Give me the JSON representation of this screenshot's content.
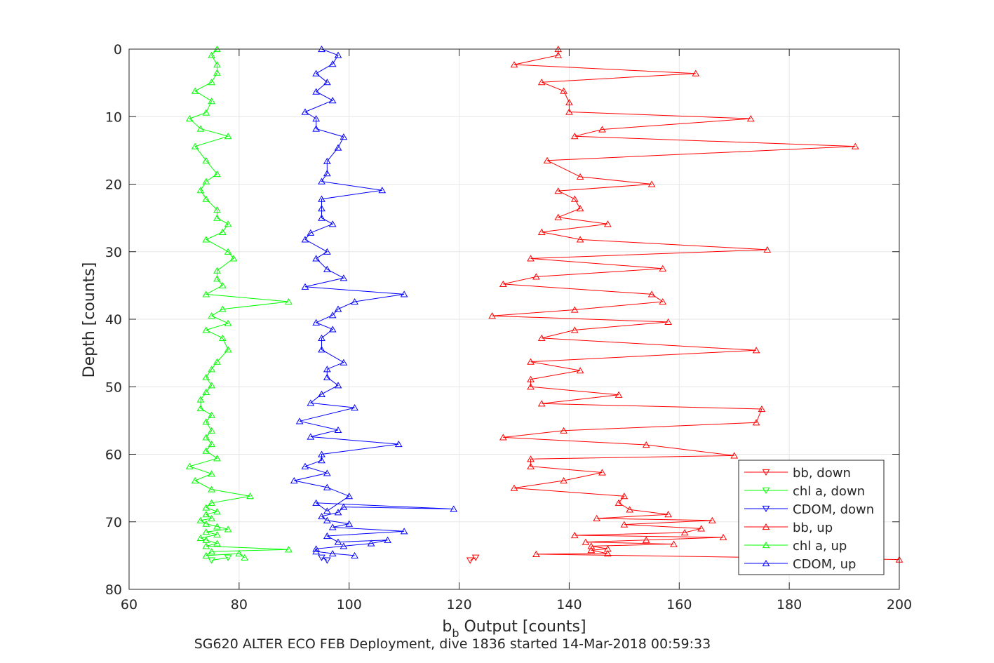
{
  "chart_data": {
    "type": "line",
    "title": "",
    "xlabel_main": "b",
    "xlabel_sub": "b",
    "xlabel_rest": " Output [counts]",
    "ylabel": "Depth [counts]",
    "caption": "SG620 ALTER ECO FEB Deployment, dive 1836 started 14-Mar-2018 00:59:33",
    "xlim": [
      60,
      200
    ],
    "ylim": [
      0,
      80
    ],
    "y_reversed": true,
    "grid": true,
    "legend_position": "bottom-right",
    "xticks": [
      60,
      80,
      100,
      120,
      140,
      160,
      180,
      200
    ],
    "yticks": [
      0,
      10,
      20,
      30,
      40,
      50,
      60,
      70,
      80
    ],
    "xtick_labels": [
      "60",
      "80",
      "100",
      "120",
      "140",
      "160",
      "180",
      "200"
    ],
    "ytick_labels": [
      "0",
      "10",
      "20",
      "30",
      "40",
      "50",
      "60",
      "70",
      "80"
    ],
    "series": [
      {
        "name": "bb, down",
        "color": "#ff0000",
        "marker": "triangle-down",
        "points": [
          [
            122,
            75.7
          ],
          [
            123,
            75.3
          ]
        ]
      },
      {
        "name": "chl a, down",
        "color": "#00ff00",
        "marker": "triangle-down",
        "points": [
          [
            78,
            75.3
          ],
          [
            75,
            75.7
          ]
        ]
      },
      {
        "name": "CDOM, down",
        "color": "#0000ff",
        "marker": "triangle-down",
        "points": [
          [
            95,
            75.3
          ],
          [
            96,
            75.7
          ]
        ]
      },
      {
        "name": "bb, up",
        "color": "#ff0000",
        "marker": "triangle-up",
        "points": [
          [
            200,
            75.6
          ],
          [
            134,
            74.8
          ],
          [
            147,
            74.7
          ],
          [
            144,
            74.2
          ],
          [
            147,
            74.0
          ],
          [
            144,
            73.6
          ],
          [
            159,
            73.3
          ],
          [
            143,
            73.0
          ],
          [
            154,
            72.7
          ],
          [
            168,
            72.3
          ],
          [
            141,
            72.0
          ],
          [
            161,
            71.6
          ],
          [
            164,
            71.0
          ],
          [
            150,
            70.4
          ],
          [
            166,
            69.8
          ],
          [
            145,
            69.5
          ],
          [
            158,
            68.9
          ],
          [
            151,
            68.2
          ],
          [
            149,
            67.2
          ],
          [
            150,
            66.2
          ],
          [
            130,
            65.0
          ],
          [
            139,
            63.9
          ],
          [
            146,
            62.7
          ],
          [
            133,
            61.8
          ],
          [
            133,
            60.7
          ],
          [
            170,
            60.2
          ],
          [
            154,
            58.6
          ],
          [
            128,
            57.5
          ],
          [
            139,
            56.5
          ],
          [
            174,
            55.3
          ],
          [
            175,
            53.3
          ],
          [
            135,
            52.5
          ],
          [
            149,
            51.2
          ],
          [
            133,
            50.0
          ],
          [
            133,
            48.9
          ],
          [
            142,
            47.6
          ],
          [
            133,
            46.3
          ],
          [
            174,
            44.6
          ],
          [
            135,
            42.8
          ],
          [
            141,
            41.6
          ],
          [
            158,
            40.4
          ],
          [
            126,
            39.5
          ],
          [
            141,
            38.6
          ],
          [
            157,
            37.4
          ],
          [
            155,
            36.3
          ],
          [
            128,
            34.8
          ],
          [
            134,
            33.7
          ],
          [
            157,
            32.5
          ],
          [
            133,
            31.0
          ],
          [
            176,
            29.7
          ],
          [
            142,
            28.2
          ],
          [
            135,
            27.1
          ],
          [
            147,
            25.9
          ],
          [
            138,
            24.9
          ],
          [
            142,
            23.6
          ],
          [
            141,
            22.2
          ],
          [
            138,
            21.0
          ],
          [
            155,
            20.0
          ],
          [
            142,
            18.9
          ],
          [
            136,
            16.5
          ],
          [
            192,
            14.4
          ],
          [
            141,
            12.9
          ],
          [
            146,
            11.9
          ],
          [
            173,
            10.3
          ],
          [
            140,
            9.3
          ],
          [
            140,
            7.9
          ],
          [
            139,
            6.2
          ],
          [
            135,
            4.9
          ],
          [
            163,
            3.6
          ],
          [
            130,
            2.3
          ],
          [
            138,
            0.9
          ],
          [
            138,
            0.0
          ]
        ]
      },
      {
        "name": "chl a, up",
        "color": "#00ff00",
        "marker": "triangle-up",
        "points": [
          [
            81,
            75.3
          ],
          [
            80,
            74.7
          ],
          [
            74,
            75.0
          ],
          [
            75,
            74.4
          ],
          [
            89,
            74.1
          ],
          [
            74,
            73.6
          ],
          [
            76,
            73.2
          ],
          [
            74,
            72.7
          ],
          [
            73,
            72.4
          ],
          [
            76,
            71.9
          ],
          [
            74,
            71.5
          ],
          [
            78,
            71.1
          ],
          [
            76,
            70.7
          ],
          [
            74,
            70.3
          ],
          [
            73,
            69.8
          ],
          [
            75,
            69.5
          ],
          [
            74,
            68.9
          ],
          [
            76,
            68.5
          ],
          [
            74,
            67.9
          ],
          [
            75,
            67.2
          ],
          [
            82,
            66.2
          ],
          [
            75,
            65.2
          ],
          [
            72,
            63.9
          ],
          [
            75,
            62.9
          ],
          [
            71,
            61.8
          ],
          [
            76,
            60.6
          ],
          [
            74,
            59.5
          ],
          [
            75,
            58.5
          ],
          [
            74,
            57.5
          ],
          [
            75,
            56.5
          ],
          [
            74,
            55.2
          ],
          [
            75,
            54.2
          ],
          [
            73,
            53.2
          ],
          [
            73,
            51.9
          ],
          [
            74,
            50.8
          ],
          [
            75,
            49.8
          ],
          [
            74,
            48.6
          ],
          [
            75,
            47.4
          ],
          [
            76,
            46.3
          ],
          [
            78,
            44.5
          ],
          [
            77,
            42.8
          ],
          [
            74,
            41.6
          ],
          [
            78,
            40.6
          ],
          [
            75,
            39.5
          ],
          [
            77,
            38.5
          ],
          [
            89,
            37.4
          ],
          [
            74,
            36.3
          ],
          [
            77,
            35.0
          ],
          [
            76,
            34.0
          ],
          [
            76,
            32.8
          ],
          [
            79,
            31.0
          ],
          [
            78,
            30.0
          ],
          [
            74,
            28.2
          ],
          [
            77,
            27.1
          ],
          [
            78,
            25.9
          ],
          [
            76,
            25.0
          ],
          [
            76,
            23.8
          ],
          [
            74,
            22.2
          ],
          [
            73,
            20.9
          ],
          [
            74,
            19.6
          ],
          [
            76,
            18.5
          ],
          [
            74,
            16.5
          ],
          [
            72,
            14.4
          ],
          [
            78,
            12.9
          ],
          [
            73,
            11.8
          ],
          [
            71,
            10.3
          ],
          [
            74,
            9.4
          ],
          [
            75,
            7.7
          ],
          [
            72,
            6.2
          ],
          [
            75,
            4.9
          ],
          [
            76,
            3.5
          ],
          [
            76,
            2.3
          ],
          [
            75,
            0.9
          ],
          [
            76,
            0.0
          ]
        ]
      },
      {
        "name": "CDOM, up",
        "color": "#0000ff",
        "marker": "triangle-up",
        "points": [
          [
            101,
            75.0
          ],
          [
            97,
            74.7
          ],
          [
            94,
            74.4
          ],
          [
            94,
            74.0
          ],
          [
            99,
            73.6
          ],
          [
            104,
            73.2
          ],
          [
            107,
            72.7
          ],
          [
            98,
            73.0
          ],
          [
            96,
            72.1
          ],
          [
            110,
            71.4
          ],
          [
            97,
            70.8
          ],
          [
            100,
            70.3
          ],
          [
            96,
            69.8
          ],
          [
            95,
            69.2
          ],
          [
            98,
            68.6
          ],
          [
            99,
            67.8
          ],
          [
            119,
            68.1
          ],
          [
            94,
            67.2
          ],
          [
            96,
            68.4
          ],
          [
            100,
            66.2
          ],
          [
            96,
            64.9
          ],
          [
            90,
            63.9
          ],
          [
            96,
            62.8
          ],
          [
            92,
            61.8
          ],
          [
            95,
            60.9
          ],
          [
            95,
            60.0
          ],
          [
            109,
            58.5
          ],
          [
            93,
            57.4
          ],
          [
            98,
            56.4
          ],
          [
            91,
            55.1
          ],
          [
            101,
            53.1
          ],
          [
            93,
            52.4
          ],
          [
            95,
            51.1
          ],
          [
            98,
            49.8
          ],
          [
            96,
            48.6
          ],
          [
            96,
            47.4
          ],
          [
            99,
            46.4
          ],
          [
            95,
            44.5
          ],
          [
            95,
            42.8
          ],
          [
            97,
            41.5
          ],
          [
            94,
            40.5
          ],
          [
            97,
            39.4
          ],
          [
            98,
            38.5
          ],
          [
            101,
            37.4
          ],
          [
            110,
            36.3
          ],
          [
            92,
            35.2
          ],
          [
            99,
            33.9
          ],
          [
            96,
            32.6
          ],
          [
            94,
            31.0
          ],
          [
            96,
            30.0
          ],
          [
            92,
            28.2
          ],
          [
            93,
            27.2
          ],
          [
            97,
            25.9
          ],
          [
            95,
            25.0
          ],
          [
            95,
            23.6
          ],
          [
            95,
            22.2
          ],
          [
            106,
            20.9
          ],
          [
            95,
            19.6
          ],
          [
            96,
            18.4
          ],
          [
            96,
            16.6
          ],
          [
            98,
            14.6
          ],
          [
            99,
            13.0
          ],
          [
            94,
            11.8
          ],
          [
            94,
            10.3
          ],
          [
            92,
            9.3
          ],
          [
            97,
            7.6
          ],
          [
            94,
            6.3
          ],
          [
            96,
            4.9
          ],
          [
            94,
            3.6
          ],
          [
            97,
            2.2
          ],
          [
            98,
            0.9
          ],
          [
            95,
            0.0
          ]
        ]
      }
    ]
  }
}
